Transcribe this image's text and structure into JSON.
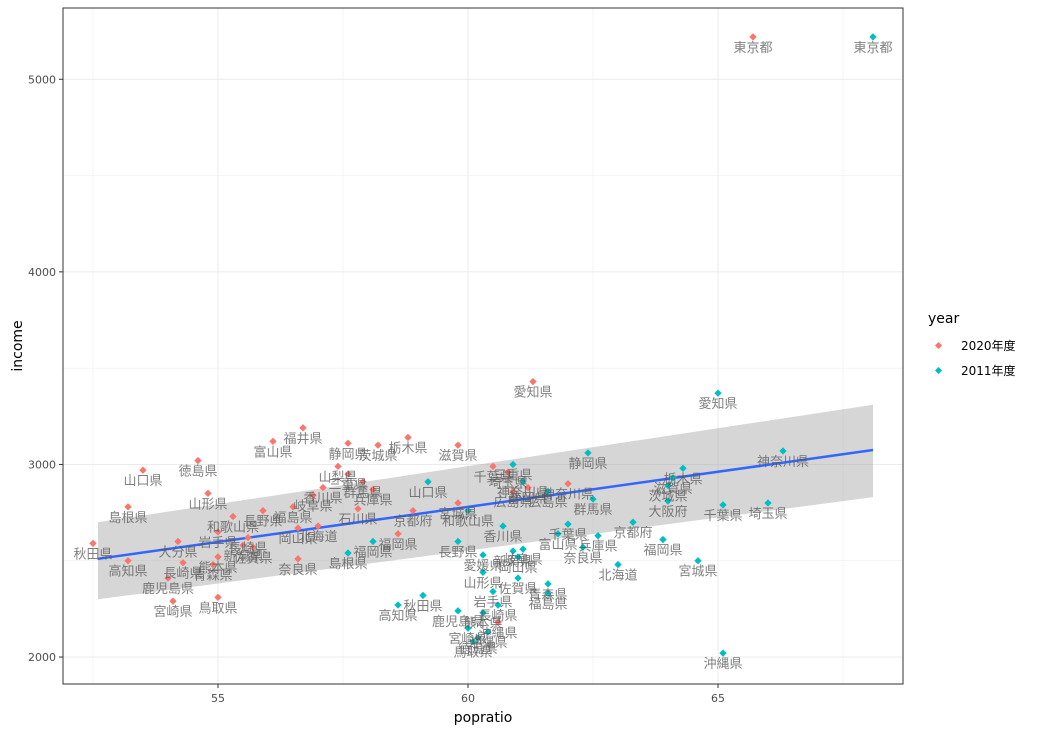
{
  "chart_data": {
    "type": "scatter",
    "xlabel": "popratio",
    "ylabel": "income",
    "xlim": [
      51.9,
      68.7
    ],
    "ylim": [
      1860,
      5370
    ],
    "x_ticks": [
      55,
      60,
      65
    ],
    "y_ticks": [
      2000,
      3000,
      4000,
      5000
    ],
    "grid": true,
    "legend_title": "year",
    "legend_position": "right",
    "trend": {
      "method": "lm",
      "x": [
        52.6,
        68.1
      ],
      "y": [
        2510,
        3075
      ],
      "se_lower": [
        2300,
        2830
      ],
      "se_upper": [
        2700,
        3310
      ],
      "color": "#3366FF"
    },
    "series": [
      {
        "name": "2020年度",
        "color": "#F8766D",
        "points": [
          {
            "label": "東京都",
            "x": 65.7,
            "y": 5220
          },
          {
            "label": "愛知県",
            "x": 61.3,
            "y": 3430
          },
          {
            "label": "福井県",
            "x": 56.7,
            "y": 3190
          },
          {
            "label": "富山県",
            "x": 56.1,
            "y": 3120
          },
          {
            "label": "静岡県",
            "x": 57.6,
            "y": 3110
          },
          {
            "label": "栃木県",
            "x": 58.8,
            "y": 3140
          },
          {
            "label": "茨城県",
            "x": 58.2,
            "y": 3100
          },
          {
            "label": "滋賀県",
            "x": 59.8,
            "y": 3100
          },
          {
            "label": "徳島県",
            "x": 54.6,
            "y": 3020
          },
          {
            "label": "山口県",
            "x": 53.5,
            "y": 2970
          },
          {
            "label": "山梨県",
            "x": 57.4,
            "y": 2990
          },
          {
            "label": "群馬県",
            "x": 57.9,
            "y": 2910
          },
          {
            "label": "三重県",
            "x": 57.6,
            "y": 2950
          },
          {
            "label": "千葉県",
            "x": 60.5,
            "y": 2990
          },
          {
            "label": "埼玉県",
            "x": 60.8,
            "y": 2960
          },
          {
            "label": "広島県",
            "x": 60.9,
            "y": 2860
          },
          {
            "label": "神奈川県",
            "x": 62.0,
            "y": 2900
          },
          {
            "label": "静岡県",
            "x": 61.2,
            "y": 2880
          },
          {
            "label": "山形県",
            "x": 54.8,
            "y": 2850
          },
          {
            "label": "岐阜県",
            "x": 56.9,
            "y": 2840
          },
          {
            "label": "香川県",
            "x": 57.1,
            "y": 2880
          },
          {
            "label": "兵庫県",
            "x": 58.1,
            "y": 2870
          },
          {
            "label": "石川県",
            "x": 57.8,
            "y": 2770
          },
          {
            "label": "福島県",
            "x": 56.5,
            "y": 2780
          },
          {
            "label": "島根県",
            "x": 53.2,
            "y": 2780
          },
          {
            "label": "和歌山県",
            "x": 55.3,
            "y": 2730
          },
          {
            "label": "長野県",
            "x": 55.9,
            "y": 2760
          },
          {
            "label": "京都府",
            "x": 58.9,
            "y": 2760
          },
          {
            "label": "宮城県",
            "x": 59.8,
            "y": 2800
          },
          {
            "label": "岡山県",
            "x": 56.6,
            "y": 2670
          },
          {
            "label": "北海道",
            "x": 57.0,
            "y": 2680
          },
          {
            "label": "岩手県",
            "x": 55.0,
            "y": 2650
          },
          {
            "label": "長崎県",
            "x": 55.6,
            "y": 2620
          },
          {
            "label": "新潟県",
            "x": 55.5,
            "y": 2580
          },
          {
            "label": "佐賀県",
            "x": 55.7,
            "y": 2570
          },
          {
            "label": "大分県",
            "x": 54.2,
            "y": 2600
          },
          {
            "label": "福岡県",
            "x": 58.6,
            "y": 2640
          },
          {
            "label": "秋田県",
            "x": 52.5,
            "y": 2590
          },
          {
            "label": "高知県",
            "x": 53.2,
            "y": 2500
          },
          {
            "label": "長崎県",
            "x": 54.3,
            "y": 2490
          },
          {
            "label": "青森県",
            "x": 54.9,
            "y": 2480
          },
          {
            "label": "熊本県",
            "x": 55.0,
            "y": 2520
          },
          {
            "label": "奈良県",
            "x": 56.6,
            "y": 2510
          },
          {
            "label": "鹿児島県",
            "x": 54.0,
            "y": 2410
          },
          {
            "label": "鳥取県",
            "x": 55.0,
            "y": 2310
          },
          {
            "label": "宮崎県",
            "x": 54.1,
            "y": 2290
          },
          {
            "label": "沖縄県",
            "x": 60.6,
            "y": 2180
          }
        ]
      },
      {
        "name": "2011年度",
        "color": "#00BFC4",
        "points": [
          {
            "label": "東京都",
            "x": 68.1,
            "y": 5220
          },
          {
            "label": "愛知県",
            "x": 65.0,
            "y": 3370
          },
          {
            "label": "神奈川県",
            "x": 66.3,
            "y": 3070
          },
          {
            "label": "静岡県",
            "x": 62.4,
            "y": 3060
          },
          {
            "label": "栃木県",
            "x": 64.3,
            "y": 2980
          },
          {
            "label": "滋賀県",
            "x": 64.1,
            "y": 2930
          },
          {
            "label": "茨城県",
            "x": 64.0,
            "y": 2890
          },
          {
            "label": "群馬県",
            "x": 62.5,
            "y": 2820
          },
          {
            "label": "広島県",
            "x": 61.6,
            "y": 2860
          },
          {
            "label": "神奈川県",
            "x": 61.1,
            "y": 2910
          },
          {
            "label": "三重県",
            "x": 60.9,
            "y": 3000
          },
          {
            "label": "埼玉県",
            "x": 66.0,
            "y": 2800
          },
          {
            "label": "千葉県",
            "x": 65.1,
            "y": 2790
          },
          {
            "label": "大阪府",
            "x": 64.0,
            "y": 2810
          },
          {
            "label": "兵庫県",
            "x": 62.6,
            "y": 2630
          },
          {
            "label": "京都府",
            "x": 63.3,
            "y": 2700
          },
          {
            "label": "山口県",
            "x": 59.2,
            "y": 2910
          },
          {
            "label": "和歌山県",
            "x": 60.0,
            "y": 2760
          },
          {
            "label": "香川県",
            "x": 60.7,
            "y": 2680
          },
          {
            "label": "千葉県",
            "x": 62.0,
            "y": 2690
          },
          {
            "label": "富山県",
            "x": 61.8,
            "y": 2640
          },
          {
            "label": "奈良県",
            "x": 62.3,
            "y": 2570
          },
          {
            "label": "岐阜県",
            "x": 61.1,
            "y": 2560
          },
          {
            "label": "新潟県",
            "x": 60.9,
            "y": 2550
          },
          {
            "label": "岡山県",
            "x": 61.0,
            "y": 2520
          },
          {
            "label": "福岡県",
            "x": 63.9,
            "y": 2610
          },
          {
            "label": "宮城県",
            "x": 64.6,
            "y": 2500
          },
          {
            "label": "北海道",
            "x": 63.0,
            "y": 2480
          },
          {
            "label": "長野県",
            "x": 59.8,
            "y": 2600
          },
          {
            "label": "福岡県",
            "x": 58.1,
            "y": 2600
          },
          {
            "label": "島根県",
            "x": 57.6,
            "y": 2540
          },
          {
            "label": "愛媛県",
            "x": 60.3,
            "y": 2530
          },
          {
            "label": "山形県",
            "x": 60.3,
            "y": 2440
          },
          {
            "label": "佐賀県",
            "x": 61.0,
            "y": 2410
          },
          {
            "label": "青森県",
            "x": 61.6,
            "y": 2380
          },
          {
            "label": "岩手県",
            "x": 60.5,
            "y": 2340
          },
          {
            "label": "福島県",
            "x": 61.6,
            "y": 2330
          },
          {
            "label": "秋田県",
            "x": 59.1,
            "y": 2320
          },
          {
            "label": "高知県",
            "x": 58.6,
            "y": 2270
          },
          {
            "label": "鹿児島県",
            "x": 59.8,
            "y": 2240
          },
          {
            "label": "熊本県",
            "x": 60.3,
            "y": 2230
          },
          {
            "label": "長崎県",
            "x": 60.6,
            "y": 2270
          },
          {
            "label": "宮崎県",
            "x": 60.0,
            "y": 2150
          },
          {
            "label": "沖縄県",
            "x": 60.4,
            "y": 2130
          },
          {
            "label": "徳島県",
            "x": 60.2,
            "y": 2100
          },
          {
            "label": "鳥取県",
            "x": 60.1,
            "y": 2080
          },
          {
            "label": "沖縄県",
            "x": 65.1,
            "y": 2020
          }
        ]
      }
    ]
  }
}
